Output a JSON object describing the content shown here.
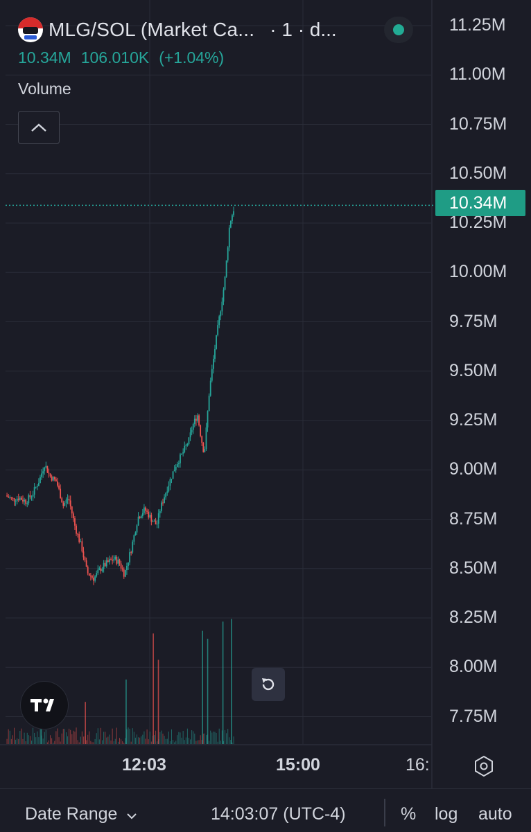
{
  "header": {
    "symbol": "MLG/SOL (Market Ca...",
    "interval": "· 1 · d...",
    "ohlc_value": "10.34M",
    "change_abs": "106.010K",
    "change_pct": "(+1.04%)",
    "volume_label": "Volume"
  },
  "current_price": "10.34M",
  "price_axis_labels": [
    "11.25M",
    "11.00M",
    "10.75M",
    "10.50M",
    "10.25M",
    "10.00M",
    "9.75M",
    "9.50M",
    "9.25M",
    "9.00M",
    "8.75M",
    "8.50M",
    "8.25M",
    "8.00M",
    "7.75M"
  ],
  "time_axis": {
    "labels": [
      "12:03",
      "15:00",
      "16:"
    ]
  },
  "bottom_bar": {
    "date_range": "Date Range",
    "time": "14:03:07 (UTC-4)",
    "percent": "%",
    "log": "log",
    "auto": "auto"
  },
  "colors": {
    "background": "#1b1c26",
    "up": "#26a69a",
    "down": "#ef5350",
    "grid": "#2a2d38",
    "price_tag": "#1f9c85"
  },
  "chart_data": {
    "type": "candlestick",
    "y_unit": "market cap (SOL)",
    "ylim": [
      7.65,
      11.32
    ],
    "grid": true,
    "last_value": 10.34,
    "price_line": 10.34,
    "close_path": [
      [
        0,
        8.87
      ],
      [
        0.04,
        8.85
      ],
      [
        0.08,
        8.86
      ],
      [
        0.12,
        8.84
      ],
      [
        0.16,
        8.88
      ],
      [
        0.2,
        8.95
      ],
      [
        0.23,
        9.03
      ],
      [
        0.26,
        8.97
      ],
      [
        0.3,
        8.94
      ],
      [
        0.34,
        8.82
      ],
      [
        0.37,
        8.86
      ],
      [
        0.41,
        8.71
      ],
      [
        0.45,
        8.6
      ],
      [
        0.48,
        8.48
      ],
      [
        0.52,
        8.45
      ],
      [
        0.56,
        8.5
      ],
      [
        0.6,
        8.53
      ],
      [
        0.64,
        8.55
      ],
      [
        0.67,
        8.53
      ],
      [
        0.7,
        8.47
      ],
      [
        0.74,
        8.6
      ],
      [
        0.78,
        8.76
      ],
      [
        0.82,
        8.8
      ],
      [
        0.86,
        8.75
      ],
      [
        0.89,
        8.72
      ],
      [
        0.91,
        8.8
      ],
      [
        0.94,
        8.88
      ],
      [
        0.97,
        8.95
      ],
      [
        1.0,
        9.02
      ],
      [
        1.04,
        9.08
      ],
      [
        1.08,
        9.15
      ],
      [
        1.1,
        9.22
      ],
      [
        1.13,
        9.28
      ],
      [
        1.15,
        9.17
      ],
      [
        1.17,
        9.08
      ],
      [
        1.2,
        9.4
      ],
      [
        1.23,
        9.6
      ],
      [
        1.26,
        9.78
      ],
      [
        1.29,
        9.95
      ],
      [
        1.32,
        10.25
      ],
      [
        1.35,
        10.34
      ]
    ],
    "volume_spikes": [
      {
        "t": 0.21,
        "v": 0.33,
        "up": true
      },
      {
        "t": 0.47,
        "v": 0.32,
        "up": false
      },
      {
        "t": 0.71,
        "v": 0.49,
        "up": true
      },
      {
        "t": 0.87,
        "v": 0.84,
        "up": false
      },
      {
        "t": 0.9,
        "v": 0.64,
        "up": false
      },
      {
        "t": 1.16,
        "v": 0.86,
        "up": true
      },
      {
        "t": 1.19,
        "v": 0.8,
        "up": true
      },
      {
        "t": 1.28,
        "v": 0.93,
        "up": true
      },
      {
        "t": 1.33,
        "v": 0.95,
        "up": true
      }
    ]
  }
}
